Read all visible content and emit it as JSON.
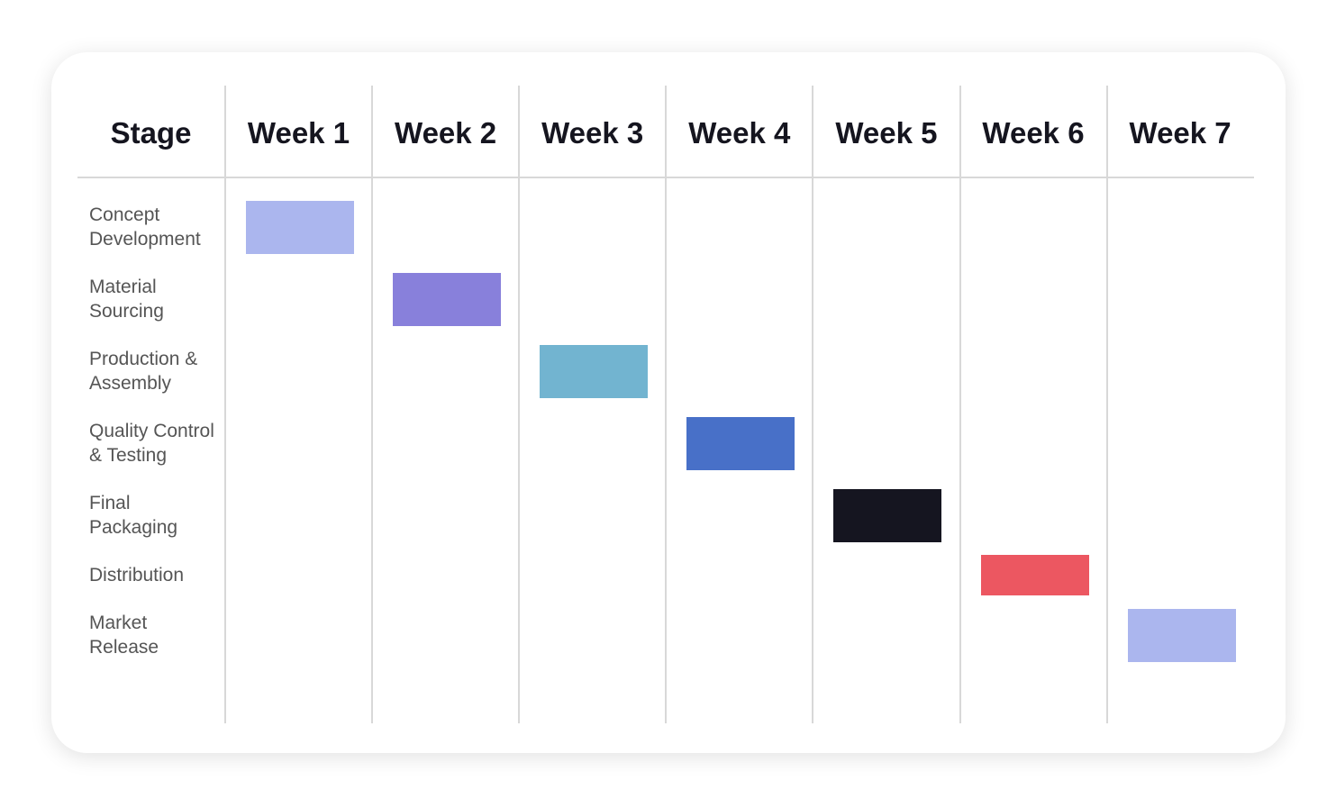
{
  "chart_data": {
    "type": "gantt",
    "stage_header": "Stage",
    "weeks": [
      "Week 1",
      "Week 2",
      "Week 3",
      "Week 4",
      "Week 5",
      "Week 6",
      "Week 7"
    ],
    "categories": [
      "Concept Development",
      "Material Sourcing",
      "Production & Assembly",
      "Quality Control & Testing",
      "Final Packaging",
      "Distribution",
      "Market Release"
    ],
    "values": [
      1,
      2,
      3,
      4,
      5,
      6,
      7
    ],
    "colors": [
      "#abb6ee",
      "#8880db",
      "#72b4d0",
      "#4870c8",
      "#151520",
      "#ec5761",
      "#abb6ee"
    ]
  }
}
